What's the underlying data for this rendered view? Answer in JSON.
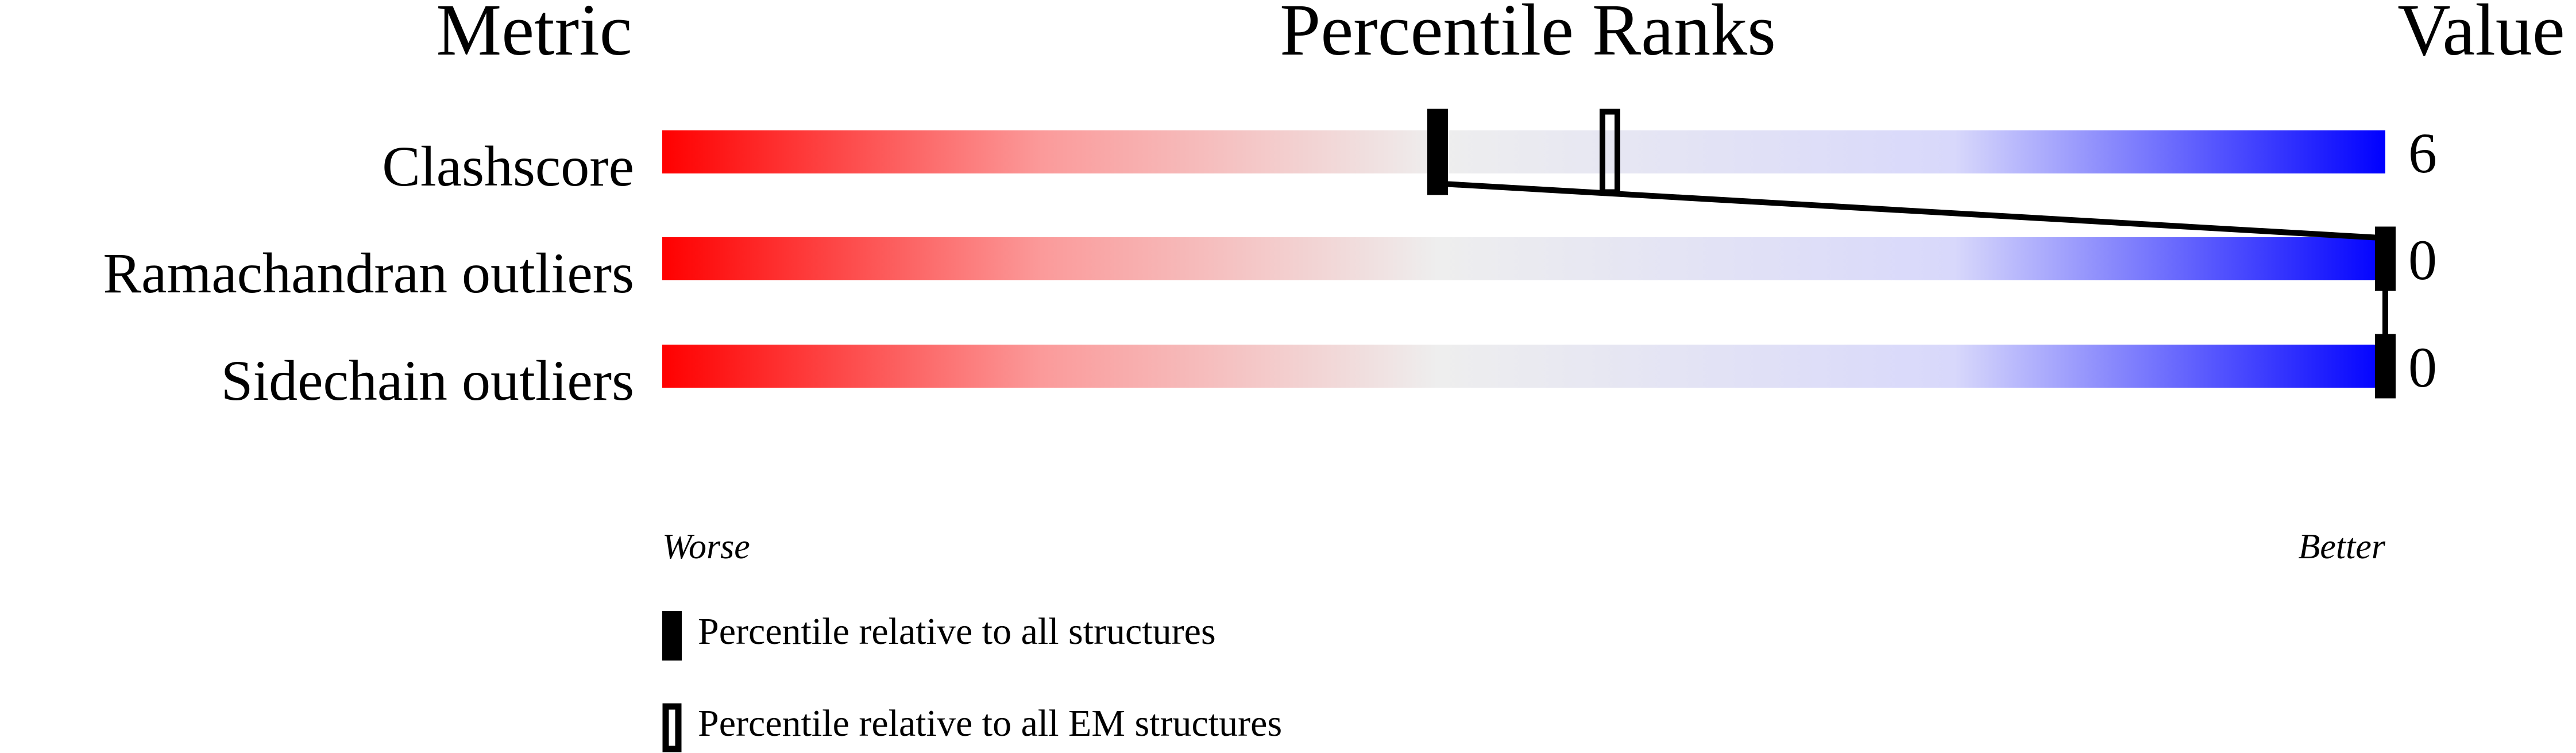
{
  "chart_data": {
    "type": "percentile-slider",
    "headers": {
      "metric": "Metric",
      "percentile": "Percentile Ranks",
      "value": "Value"
    },
    "xlim": [
      0,
      100
    ],
    "axis_notes": {
      "left": "Worse",
      "right": "Better"
    },
    "gradient_colors": [
      "#ff0000",
      "#eeeeee",
      "#0000ff"
    ],
    "rows": [
      {
        "metric": "Clashscore",
        "value": "6",
        "percentile_all": 45,
        "percentile_em": 55
      },
      {
        "metric": "Ramachandran outliers",
        "value": "0",
        "percentile_all": 100
      },
      {
        "metric": "Sidechain outliers",
        "value": "0",
        "percentile_all": 100
      }
    ],
    "legend": [
      {
        "marker": "filled",
        "label": "Percentile relative to all structures"
      },
      {
        "marker": "open",
        "label": "Percentile relative to all EM structures"
      }
    ]
  }
}
